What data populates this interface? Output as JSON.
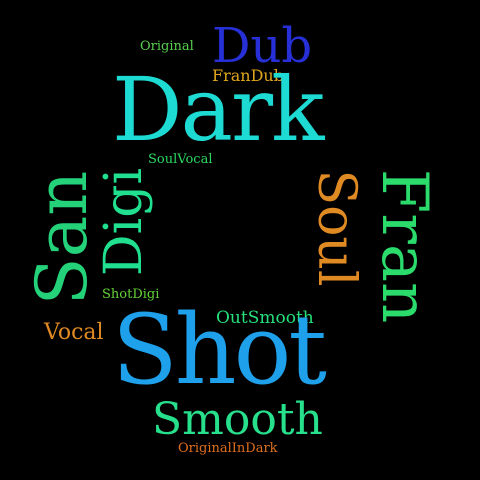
{
  "wordcloud": {
    "background": "#000000",
    "words": {
      "dark": {
        "text": "Dark",
        "color": "#1ddbd3"
      },
      "shot": {
        "text": "Shot",
        "color": "#1ea0ea"
      },
      "san": {
        "text": "San",
        "color": "#24d27a"
      },
      "digi": {
        "text": "Digi",
        "color": "#20e08f"
      },
      "soul": {
        "text": "Soul",
        "color": "#e08a23"
      },
      "fran": {
        "text": "Fran",
        "color": "#2bdc6c"
      },
      "dub": {
        "text": "Dub",
        "color": "#2630d6"
      },
      "smooth": {
        "text": "Smooth",
        "color": "#27e08c"
      },
      "frandub": {
        "text": "FranDub",
        "color": "#e0a61d"
      },
      "original": {
        "text": "Original",
        "color": "#58d04d"
      },
      "soulvocal": {
        "text": "SoulVocal",
        "color": "#2bd860"
      },
      "shotdigi": {
        "text": "ShotDigi",
        "color": "#62d437"
      },
      "outsmooth": {
        "text": "OutSmooth",
        "color": "#25e07d"
      },
      "vocal": {
        "text": "Vocal",
        "color": "#e08a23"
      },
      "originalindark": {
        "text": "OriginalInDark",
        "color": "#e06f1e"
      }
    }
  }
}
